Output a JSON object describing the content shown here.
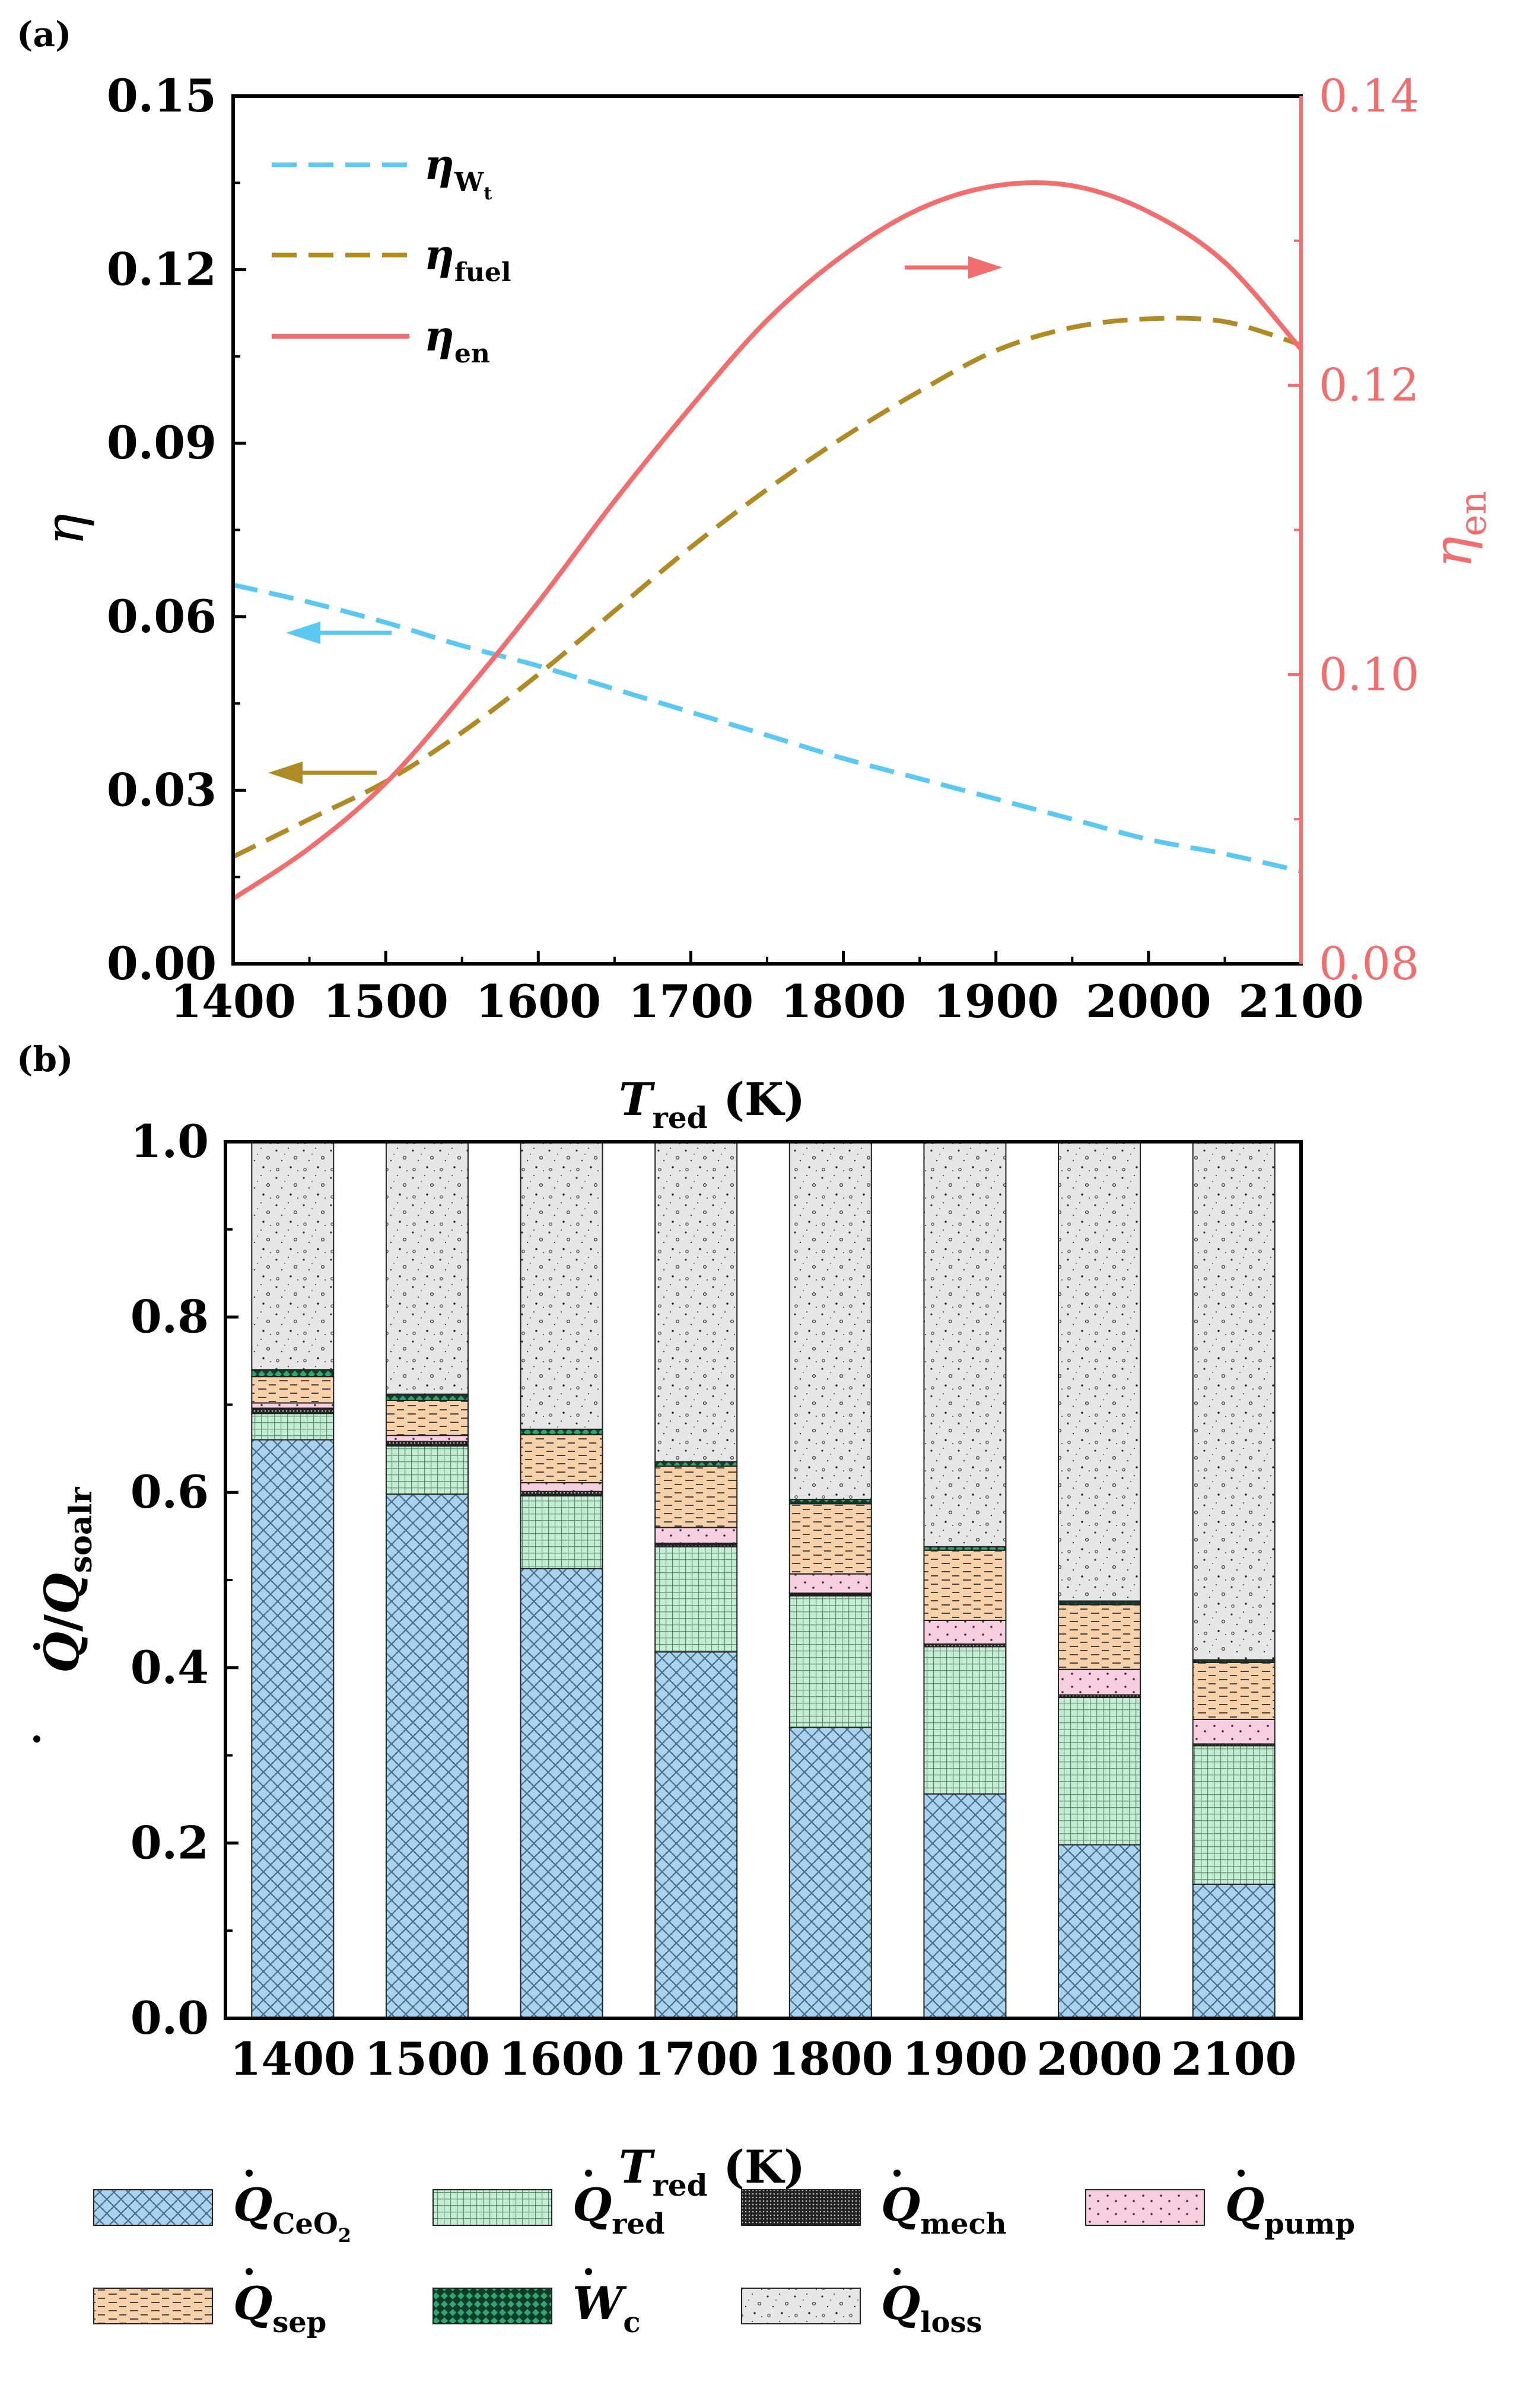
{
  "chart_data": [
    {
      "panel_label": "(a)",
      "type": "line",
      "xlabel": "T",
      "xlabel_sub": "red",
      "xlabel_unit": " (K)",
      "ylabel": "η",
      "ylabel_right": "η",
      "ylabel_right_sub": "en",
      "xlim": [
        1400,
        2100
      ],
      "ylim": [
        0,
        0.15
      ],
      "ylim_right": [
        0.08,
        0.14
      ],
      "xticks": [
        "1400",
        "1500",
        "1600",
        "1700",
        "1800",
        "1900",
        "2000",
        "2100"
      ],
      "yticks": [
        "0.00",
        "0.03",
        "0.06",
        "0.09",
        "0.12",
        "0.15"
      ],
      "yticks_right": [
        "0.08",
        "0.10",
        "0.12",
        "0.14"
      ],
      "x": [
        1400,
        1450,
        1500,
        1550,
        1600,
        1650,
        1700,
        1750,
        1800,
        1850,
        1900,
        1950,
        2000,
        2050,
        2100
      ],
      "series": [
        {
          "name": "η",
          "sub": "W",
          "subsub": "t",
          "axis": "left",
          "style": "dashed",
          "color": "#5bc8f2",
          "values": [
            0.0655,
            0.0625,
            0.059,
            0.055,
            0.0515,
            0.0475,
            0.0435,
            0.0395,
            0.0355,
            0.032,
            0.0285,
            0.025,
            0.0215,
            0.019,
            0.016
          ]
        },
        {
          "name": "η",
          "sub": "fuel",
          "axis": "left",
          "style": "dashed",
          "color": "#b08a24",
          "values": [
            0.0185,
            0.025,
            0.0315,
            0.04,
            0.05,
            0.061,
            0.072,
            0.082,
            0.091,
            0.099,
            0.106,
            0.11,
            0.1115,
            0.111,
            0.107
          ]
        },
        {
          "name": "η",
          "sub": "en",
          "axis": "right",
          "style": "solid",
          "color": "#f26d6d",
          "values": [
            0.0845,
            0.088,
            0.0925,
            0.0985,
            0.105,
            0.112,
            0.1185,
            0.1245,
            0.129,
            0.1322,
            0.1338,
            0.1338,
            0.132,
            0.1285,
            0.1225
          ]
        }
      ],
      "arrows": [
        {
          "series": "η en",
          "direction": "right"
        },
        {
          "series": "η Wt",
          "direction": "left"
        },
        {
          "series": "η fuel",
          "direction": "left"
        }
      ]
    },
    {
      "panel_label": "(b)",
      "type": "bar",
      "stacked": true,
      "xlabel": "T",
      "xlabel_sub": "red",
      "xlabel_unit": " (K)",
      "ylabel": "Q",
      "ylabel_den": "Q",
      "ylabel_den_sub": "soalr",
      "ylim": [
        0,
        1.0
      ],
      "yticks": [
        "0.0",
        "0.2",
        "0.4",
        "0.6",
        "0.8",
        "1.0"
      ],
      "categories": [
        "1400",
        "1500",
        "1600",
        "1700",
        "1800",
        "1900",
        "2000",
        "2100"
      ],
      "series": [
        {
          "name": "Q",
          "sub": "CeO",
          "subsub": "2",
          "dot": true,
          "pattern": "cross",
          "color": "#a9d3ee",
          "values": [
            0.66,
            0.598,
            0.513,
            0.418,
            0.332,
            0.256,
            0.198,
            0.153
          ]
        },
        {
          "name": "Q",
          "sub": "red",
          "dot": true,
          "pattern": "grid",
          "color": "#bfe8d0",
          "values": [
            0.03,
            0.055,
            0.083,
            0.12,
            0.15,
            0.168,
            0.168,
            0.158
          ]
        },
        {
          "name": "Q",
          "sub": "mech",
          "dot": true,
          "pattern": "dense",
          "color": "#444444",
          "values": [
            0.006,
            0.005,
            0.005,
            0.004,
            0.003,
            0.003,
            0.003,
            0.002
          ]
        },
        {
          "name": "Q",
          "sub": "pump",
          "dot": true,
          "pattern": "pinkdots",
          "color": "#f7cde0",
          "values": [
            0.006,
            0.007,
            0.01,
            0.018,
            0.022,
            0.027,
            0.029,
            0.028
          ]
        },
        {
          "name": "Q",
          "sub": "sep",
          "dot": true,
          "pattern": "dash",
          "color": "#f7d1aa",
          "values": [
            0.03,
            0.04,
            0.055,
            0.07,
            0.08,
            0.08,
            0.074,
            0.065
          ]
        },
        {
          "name": "W",
          "sub": "c",
          "dot": true,
          "pattern": "diamond",
          "color": "#1f8a5b",
          "values": [
            0.008,
            0.007,
            0.006,
            0.005,
            0.005,
            0.004,
            0.004,
            0.003
          ]
        },
        {
          "name": "Q",
          "sub": "loss",
          "dot": true,
          "pattern": "speckle",
          "color": "#e6e6e6",
          "values": [
            0.26,
            0.288,
            0.328,
            0.365,
            0.408,
            0.462,
            0.524,
            0.591
          ]
        }
      ]
    }
  ]
}
